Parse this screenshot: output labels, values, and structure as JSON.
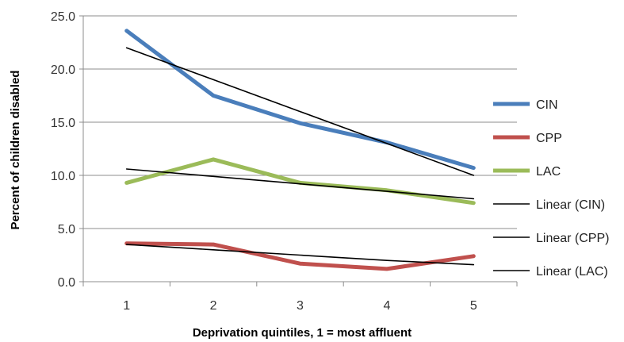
{
  "chart_data": {
    "type": "line",
    "title": "",
    "xlabel": "Deprivation quintiles, 1 = most affluent",
    "ylabel": "Percent of children disabled",
    "categories": [
      "1",
      "2",
      "3",
      "4",
      "5"
    ],
    "x": [
      1,
      2,
      3,
      4,
      5
    ],
    "ylim": [
      0,
      25
    ],
    "yticks": [
      "0.0",
      "5.0",
      "10.0",
      "15.0",
      "20.0",
      "25.0"
    ],
    "grid": true,
    "legend_position": "right",
    "series": [
      {
        "name": "CIN",
        "values": [
          23.6,
          17.5,
          14.9,
          13.1,
          10.7
        ],
        "color": "#4a7ebb",
        "kind": "data"
      },
      {
        "name": "CPP",
        "values": [
          3.6,
          3.5,
          1.7,
          1.2,
          2.4
        ],
        "color": "#c0504d",
        "kind": "data"
      },
      {
        "name": "LAC",
        "values": [
          9.3,
          11.5,
          9.3,
          8.6,
          7.4
        ],
        "color": "#9bbb59",
        "kind": "data"
      },
      {
        "name": "Linear (CIN)",
        "values": [
          22.0,
          19.0,
          16.0,
          13.0,
          10.0
        ],
        "color": "#000000",
        "kind": "trend"
      },
      {
        "name": "Linear (CPP)",
        "values": [
          3.5,
          3.0,
          2.5,
          2.0,
          1.6
        ],
        "color": "#000000",
        "kind": "trend"
      },
      {
        "name": "Linear (LAC)",
        "values": [
          10.6,
          9.9,
          9.2,
          8.5,
          7.8
        ],
        "color": "#000000",
        "kind": "trend"
      }
    ]
  }
}
